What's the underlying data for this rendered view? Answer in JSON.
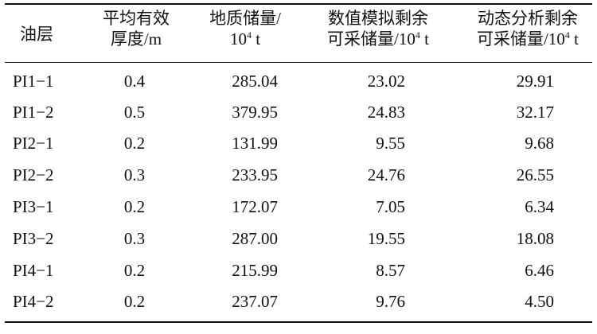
{
  "table": {
    "headers": [
      [
        "油层"
      ],
      [
        "平均有效",
        "厚度/m"
      ],
      [
        "地质储量/",
        "10",
        "4",
        " t"
      ],
      [
        "数值模拟剩余",
        "可采储量/10",
        "4",
        " t"
      ],
      [
        "动态分析剩余",
        "可采储量/10",
        "4",
        " t"
      ]
    ],
    "rows": [
      [
        "PI1−1",
        "0.4",
        "285.04",
        "23.02",
        "29.91"
      ],
      [
        "PI1−2",
        "0.5",
        "379.95",
        "24.83",
        "32.17"
      ],
      [
        "PI2−1",
        "0.2",
        "131.99",
        "9.55",
        "9.68"
      ],
      [
        "PI2−2",
        "0.3",
        "233.95",
        "24.76",
        "26.55"
      ],
      [
        "PI3−1",
        "0.2",
        "172.07",
        "7.05",
        "6.34"
      ],
      [
        "PI3−2",
        "0.3",
        "287.00",
        "19.55",
        "18.08"
      ],
      [
        "PI4−1",
        "0.2",
        "215.99",
        "8.57",
        "6.46"
      ],
      [
        "PI4−2",
        "0.2",
        "237.07",
        "9.76",
        "4.50"
      ]
    ]
  }
}
